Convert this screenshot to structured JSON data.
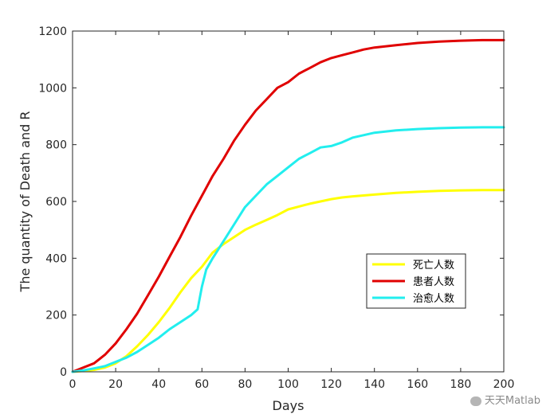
{
  "chart_data": {
    "type": "line",
    "xlabel": "Days",
    "ylabel": "The quantity of Death and R",
    "xlim": [
      0,
      200
    ],
    "ylim": [
      0,
      1200
    ],
    "xticks": [
      0,
      20,
      40,
      60,
      80,
      100,
      120,
      140,
      160,
      180,
      200
    ],
    "yticks": [
      0,
      200,
      400,
      600,
      800,
      1000,
      1200
    ],
    "grid": false,
    "legend_position": "lower-right",
    "series": [
      {
        "name": "死亡人数",
        "color": "#ffff00",
        "x": [
          0,
          5,
          10,
          15,
          20,
          25,
          30,
          35,
          40,
          45,
          50,
          55,
          60,
          65,
          70,
          75,
          80,
          85,
          90,
          95,
          100,
          105,
          110,
          115,
          120,
          125,
          130,
          140,
          150,
          160,
          170,
          180,
          190,
          200
        ],
        "y": [
          0,
          3,
          7,
          15,
          30,
          55,
          90,
          130,
          175,
          225,
          280,
          330,
          370,
          420,
          450,
          475,
          500,
          518,
          535,
          552,
          572,
          582,
          592,
          600,
          608,
          614,
          618,
          624,
          630,
          634,
          637,
          639,
          640,
          640
        ]
      },
      {
        "name": "患者人数",
        "color": "#e00000",
        "x": [
          0,
          5,
          10,
          15,
          20,
          25,
          30,
          35,
          40,
          45,
          50,
          55,
          60,
          65,
          70,
          75,
          80,
          85,
          90,
          95,
          100,
          105,
          110,
          115,
          120,
          125,
          130,
          135,
          140,
          150,
          160,
          170,
          180,
          190,
          200
        ],
        "y": [
          0,
          15,
          30,
          60,
          100,
          150,
          205,
          270,
          335,
          405,
          475,
          550,
          620,
          690,
          750,
          815,
          870,
          920,
          960,
          1000,
          1020,
          1050,
          1070,
          1090,
          1105,
          1115,
          1125,
          1135,
          1142,
          1150,
          1158,
          1163,
          1166,
          1168,
          1168
        ]
      },
      {
        "name": "治愈人数",
        "color": "#22eeee",
        "x": [
          0,
          5,
          10,
          15,
          20,
          25,
          30,
          35,
          40,
          45,
          50,
          55,
          58,
          60,
          62,
          65,
          70,
          75,
          80,
          85,
          90,
          95,
          100,
          105,
          110,
          115,
          120,
          125,
          130,
          140,
          150,
          160,
          170,
          180,
          190,
          200
        ],
        "y": [
          0,
          5,
          12,
          20,
          35,
          50,
          70,
          95,
          120,
          150,
          175,
          200,
          220,
          300,
          360,
          400,
          460,
          520,
          580,
          620,
          660,
          690,
          720,
          750,
          770,
          790,
          795,
          808,
          825,
          842,
          850,
          855,
          858,
          860,
          861,
          861
        ]
      }
    ]
  },
  "watermark": "天天Matlab"
}
